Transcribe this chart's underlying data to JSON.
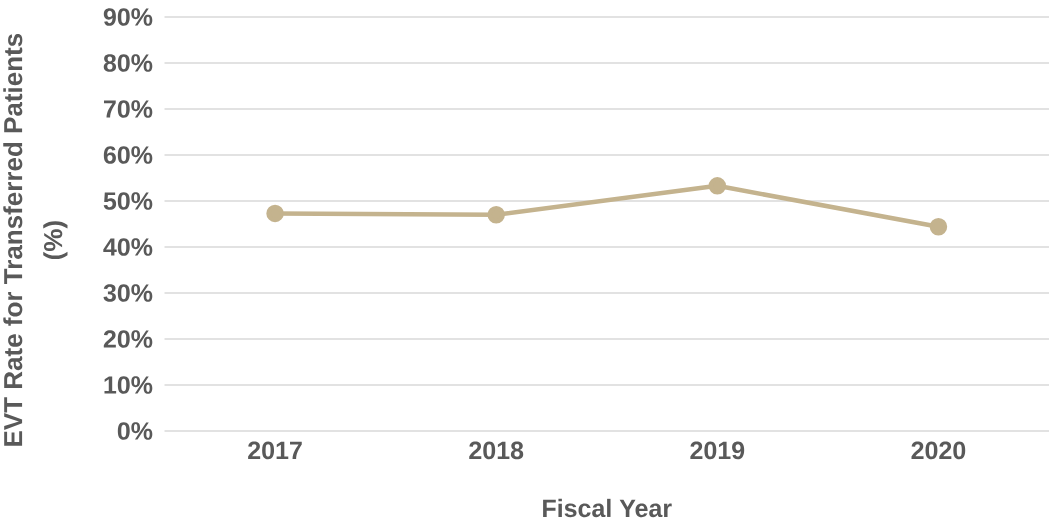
{
  "chart_data": {
    "type": "line",
    "xlabel": "Fiscal Year",
    "ylabel": "EVT Rate for Transferred Patients (%)",
    "categories": [
      "2017",
      "2018",
      "2019",
      "2020"
    ],
    "series": [
      {
        "color": "#c4b38e",
        "values": [
          47.3,
          47.0,
          53.3,
          44.4
        ]
      }
    ],
    "ylim": [
      0,
      90
    ],
    "yticks": [
      {
        "value": 0,
        "label": "0%"
      },
      {
        "value": 10,
        "label": "10%"
      },
      {
        "value": 20,
        "label": "20%"
      },
      {
        "value": 30,
        "label": "30%"
      },
      {
        "value": 40,
        "label": "40%"
      },
      {
        "value": 50,
        "label": "50%"
      },
      {
        "value": 60,
        "label": "60%"
      },
      {
        "value": 70,
        "label": "70%"
      },
      {
        "value": 80,
        "label": "80%"
      },
      {
        "value": 90,
        "label": "90%"
      }
    ],
    "grid": "y",
    "marker": "circle",
    "line_style": "solid"
  }
}
